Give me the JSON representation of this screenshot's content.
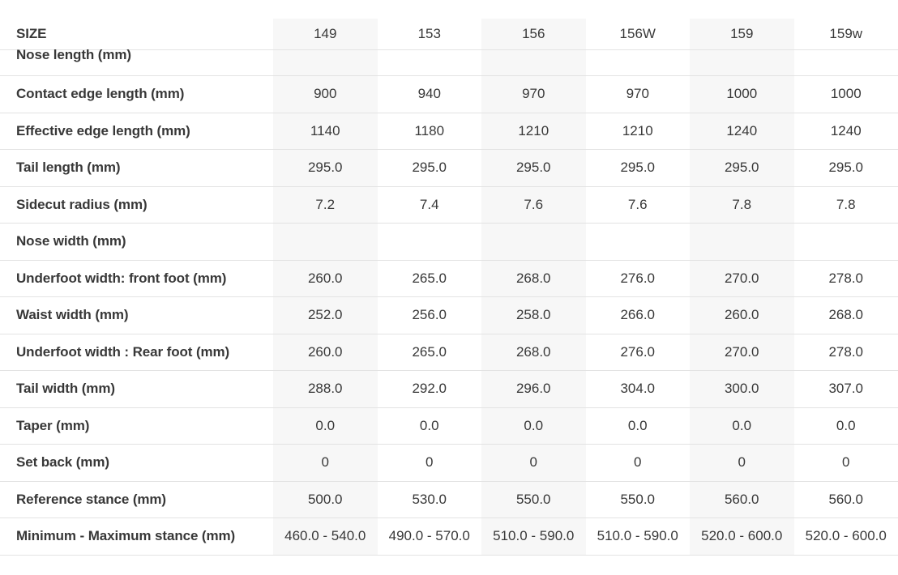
{
  "colors": {
    "page_background": "#ffffff",
    "stripe_column_bg": "#f7f7f7",
    "row_border": "#e3e3e3",
    "text": "#383838"
  },
  "spec_table": {
    "header": {
      "label": "SIZE",
      "columns": [
        "149",
        "153",
        "156",
        "156W",
        "159",
        "159w"
      ]
    },
    "rows": [
      {
        "label": "Nose length (mm)",
        "values": [
          "",
          "",
          "",
          "",
          "",
          ""
        ]
      },
      {
        "label": "Contact edge length (mm)",
        "values": [
          "900",
          "940",
          "970",
          "970",
          "1000",
          "1000"
        ]
      },
      {
        "label": "Effective edge length (mm)",
        "values": [
          "1140",
          "1180",
          "1210",
          "1210",
          "1240",
          "1240"
        ]
      },
      {
        "label": "Tail length (mm)",
        "values": [
          "295.0",
          "295.0",
          "295.0",
          "295.0",
          "295.0",
          "295.0"
        ]
      },
      {
        "label": "Sidecut radius (mm)",
        "values": [
          "7.2",
          "7.4",
          "7.6",
          "7.6",
          "7.8",
          "7.8"
        ]
      },
      {
        "label": "Nose width (mm)",
        "values": [
          "",
          "",
          "",
          "",
          "",
          ""
        ]
      },
      {
        "label": "Underfoot width: front foot (mm)",
        "values": [
          "260.0",
          "265.0",
          "268.0",
          "276.0",
          "270.0",
          "278.0"
        ]
      },
      {
        "label": "Waist width (mm)",
        "values": [
          "252.0",
          "256.0",
          "258.0",
          "266.0",
          "260.0",
          "268.0"
        ]
      },
      {
        "label": "Underfoot width : Rear foot (mm)",
        "values": [
          "260.0",
          "265.0",
          "268.0",
          "276.0",
          "270.0",
          "278.0"
        ]
      },
      {
        "label": "Tail width (mm)",
        "values": [
          "288.0",
          "292.0",
          "296.0",
          "304.0",
          "300.0",
          "307.0"
        ]
      },
      {
        "label": "Taper (mm)",
        "values": [
          "0.0",
          "0.0",
          "0.0",
          "0.0",
          "0.0",
          "0.0"
        ]
      },
      {
        "label": "Set back (mm)",
        "values": [
          "0",
          "0",
          "0",
          "0",
          "0",
          "0"
        ]
      },
      {
        "label": "Reference stance (mm)",
        "values": [
          "500.0",
          "530.0",
          "550.0",
          "550.0",
          "560.0",
          "560.0"
        ]
      },
      {
        "label": "Minimum - Maximum stance (mm)",
        "values": [
          "460.0 - 540.0",
          "490.0 - 570.0",
          "510.0 - 590.0",
          "510.0 - 590.0",
          "520.0 - 600.0",
          "520.0 - 600.0"
        ]
      }
    ]
  }
}
